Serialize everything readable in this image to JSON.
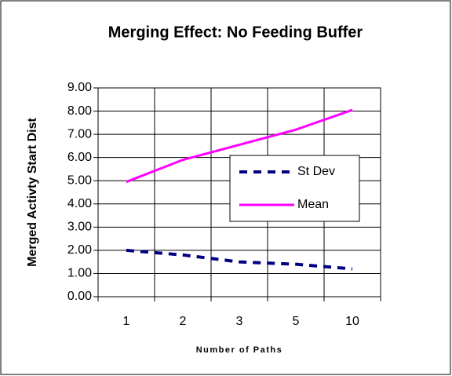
{
  "chart_data": {
    "type": "line",
    "title": "Merging Effect: No Feeding Buffer",
    "x_label": "Number of Paths",
    "y_label": "Merged Activty Start Dist",
    "categories": [
      "1",
      "2",
      "3",
      "5",
      "10"
    ],
    "series": [
      {
        "name": "St Dev",
        "color": "#000080",
        "dash": true,
        "values": [
          2.0,
          1.8,
          1.5,
          1.4,
          1.2
        ]
      },
      {
        "name": "Mean",
        "color": "#ff00ff",
        "dash": false,
        "values": [
          4.95,
          5.9,
          6.55,
          7.2,
          8.05
        ]
      }
    ],
    "ylim": [
      0,
      9
    ],
    "yticks": [
      {
        "value": 0,
        "label": "0.00"
      },
      {
        "value": 1,
        "label": "1.00"
      },
      {
        "value": 2,
        "label": "2.00"
      },
      {
        "value": 3,
        "label": "3.00"
      },
      {
        "value": 4,
        "label": "4.00"
      },
      {
        "value": 5,
        "label": "5.00"
      },
      {
        "value": 6,
        "label": "6.00"
      },
      {
        "value": 7,
        "label": "7.00"
      },
      {
        "value": 8,
        "label": "8.00"
      },
      {
        "value": 9,
        "label": "9.00"
      }
    ],
    "grid": true,
    "legend": "right"
  }
}
